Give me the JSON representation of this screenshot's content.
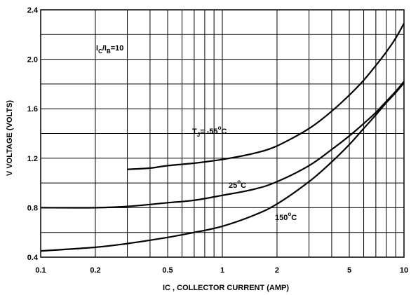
{
  "chart_data": {
    "type": "line",
    "xlabel": "IC , COLLECTOR CURRENT (AMP)",
    "ylabel": "V VOLTAGE (VOLTS)",
    "x_scale": "log",
    "xlim": [
      0.1,
      10
    ],
    "ylim": [
      0.4,
      2.4
    ],
    "grid": true,
    "x_ticks": [
      0.1,
      0.2,
      0.5,
      1,
      2,
      5,
      10
    ],
    "x_tick_labels": [
      "0.1",
      "0.2",
      "0.5",
      "1",
      "2",
      "5",
      "10"
    ],
    "y_ticks": [
      0.4,
      0.8,
      1.2,
      1.6,
      2.0,
      2.4
    ],
    "y_tick_labels": [
      "0.4",
      "0.8",
      "1.2",
      "1.6",
      "2.0",
      "2.4"
    ],
    "condition_label": {
      "main": "I",
      "sub1": "C",
      "mid": "/I",
      "sub2": "B",
      "tail": "=10"
    },
    "series": [
      {
        "label": {
          "main": "T",
          "sub": "J",
          "tail": "= -55",
          "deg": "o",
          "unit": "C"
        },
        "x": [
          0.3,
          0.4,
          0.5,
          0.7,
          1,
          1.5,
          2,
          3,
          4,
          5,
          6,
          7,
          8,
          9,
          10
        ],
        "y": [
          1.11,
          1.12,
          1.14,
          1.16,
          1.19,
          1.24,
          1.3,
          1.44,
          1.58,
          1.71,
          1.83,
          1.95,
          2.06,
          2.17,
          2.29
        ]
      },
      {
        "label": {
          "main": "25",
          "deg": "o",
          "unit": "C"
        },
        "x": [
          0.1,
          0.2,
          0.3,
          0.5,
          0.7,
          1,
          1.5,
          2,
          3,
          4,
          5,
          6,
          7,
          8,
          9,
          10
        ],
        "y": [
          0.8,
          0.8,
          0.81,
          0.84,
          0.86,
          0.9,
          0.95,
          1.01,
          1.14,
          1.27,
          1.38,
          1.48,
          1.57,
          1.66,
          1.74,
          1.82
        ]
      },
      {
        "label": {
          "main": "150",
          "deg": "o",
          "unit": "C"
        },
        "x": [
          0.1,
          0.2,
          0.3,
          0.5,
          0.7,
          1,
          1.5,
          2,
          3,
          4,
          5,
          6,
          7,
          8,
          9,
          10
        ],
        "y": [
          0.45,
          0.48,
          0.51,
          0.56,
          0.6,
          0.65,
          0.74,
          0.83,
          1.01,
          1.17,
          1.31,
          1.44,
          1.55,
          1.65,
          1.73,
          1.81
        ]
      }
    ]
  }
}
